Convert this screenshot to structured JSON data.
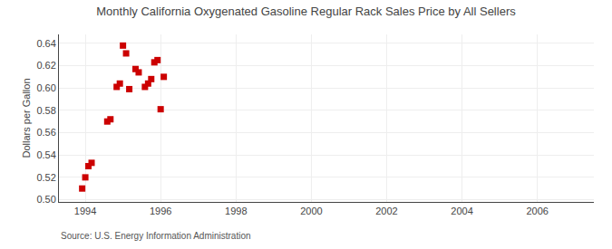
{
  "chart_data": {
    "type": "scatter",
    "title": "Monthly California Oxygenated Gasoline Regular Rack Sales Price by All Sellers",
    "ylabel": "Dollars per Gallon",
    "annotations": [
      "Source: U.S. Energy Information Administration"
    ],
    "color": "#cc0000",
    "marker": "square",
    "grid": true,
    "x": [
      1993.917,
      1994.0,
      1994.083,
      1994.167,
      1994.583,
      1994.667,
      1994.833,
      1994.917,
      1995.0,
      1995.083,
      1995.167,
      1995.333,
      1995.417,
      1995.583,
      1995.667,
      1995.75,
      1995.833,
      1995.917,
      1996.0,
      1996.083
    ],
    "values": [
      0.51,
      0.52,
      0.53,
      0.533,
      0.57,
      0.572,
      0.601,
      0.604,
      0.638,
      0.631,
      0.599,
      0.617,
      0.614,
      0.601,
      0.604,
      0.608,
      0.623,
      0.625,
      0.581,
      0.61
    ],
    "xlim": [
      1993.3,
      2007.5
    ],
    "xticks": [
      1994,
      1996,
      1998,
      2000,
      2002,
      2004,
      2006
    ],
    "ylim": [
      0.498,
      0.648
    ],
    "yticks": [
      {
        "value": 0.5,
        "label": "0.50"
      },
      0.52,
      0.54,
      0.56,
      0.58,
      {
        "value": 0.6,
        "label": "0.60"
      },
      0.62,
      0.64
    ]
  }
}
